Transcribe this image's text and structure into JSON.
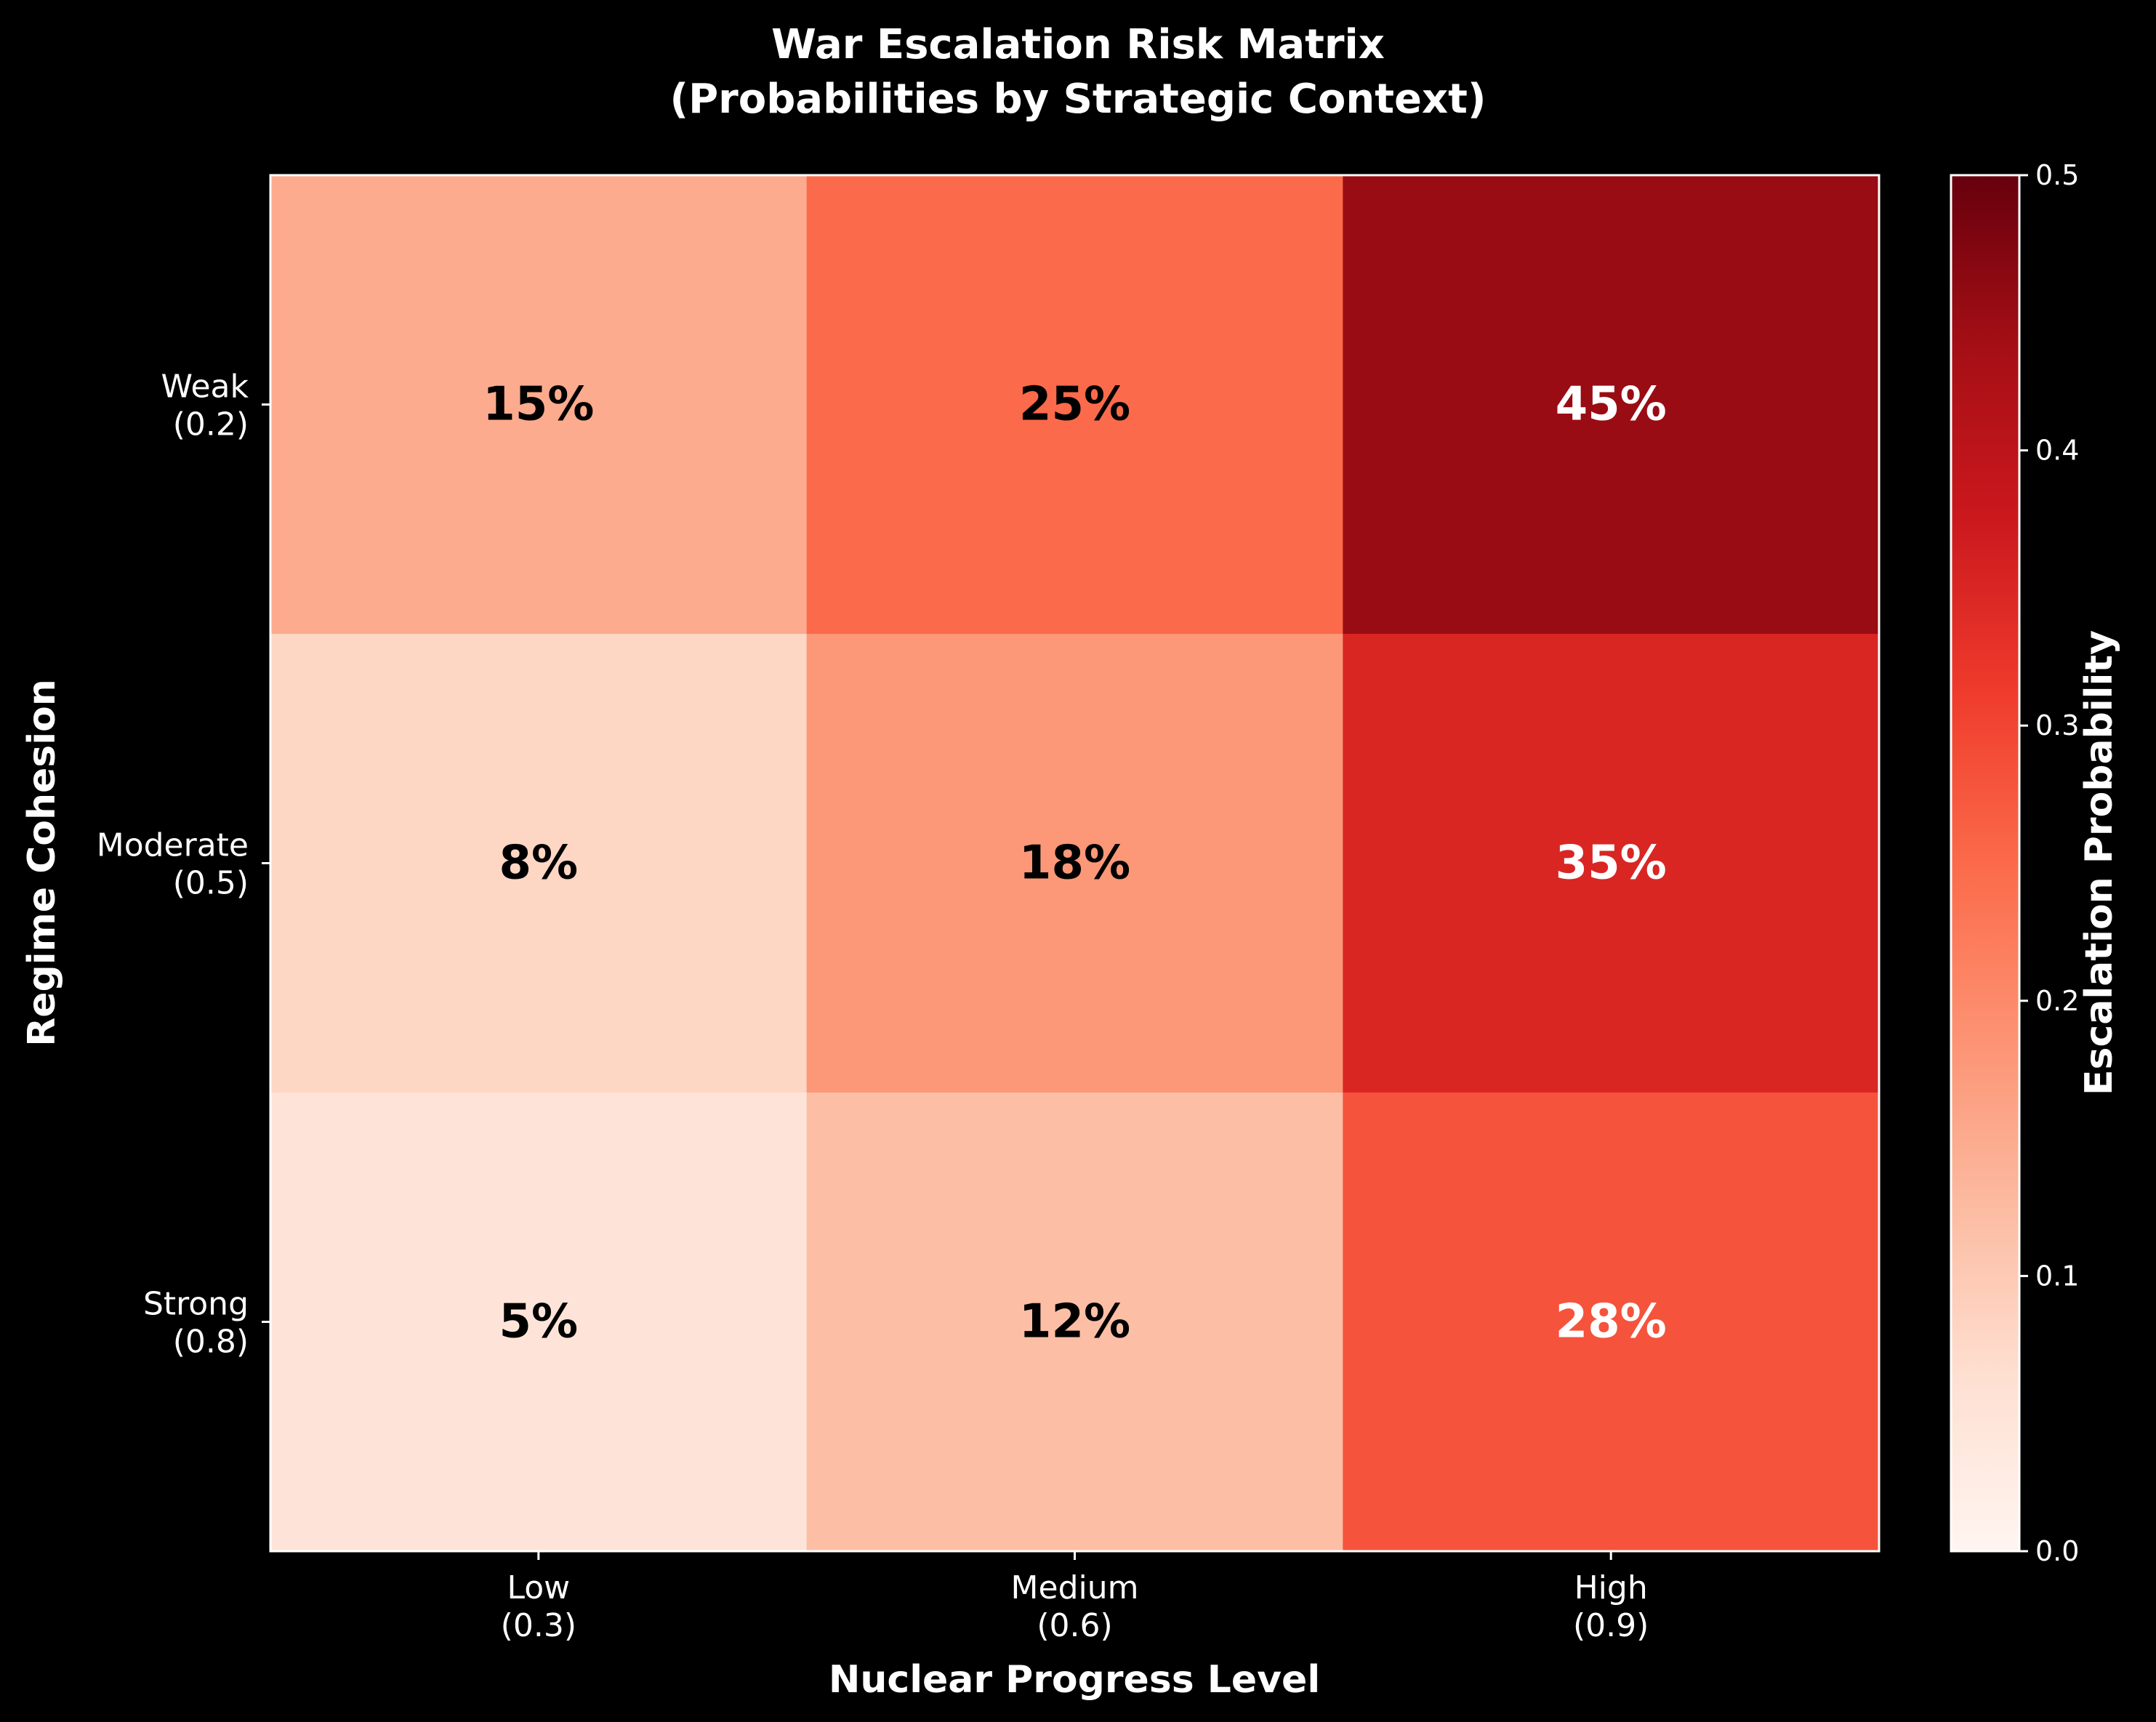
{
  "chart_data": {
    "type": "heatmap",
    "title": [
      "War Escalation Risk Matrix",
      "(Probabilities by Strategic Context)"
    ],
    "xlabel": "Nuclear Progress Level",
    "ylabel": "Regime Cohesion",
    "x_categories": [
      [
        "Low",
        "(0.3)"
      ],
      [
        "Medium",
        "(0.6)"
      ],
      [
        "High",
        "(0.9)"
      ]
    ],
    "y_categories": [
      [
        "Weak",
        "(0.2)"
      ],
      [
        "Moderate",
        "(0.5)"
      ],
      [
        "Strong",
        "(0.8)"
      ]
    ],
    "values": [
      [
        0.15,
        0.25,
        0.45
      ],
      [
        0.08,
        0.18,
        0.35
      ],
      [
        0.05,
        0.12,
        0.28
      ]
    ],
    "cell_labels": [
      [
        "15%",
        "25%",
        "45%"
      ],
      [
        "8%",
        "18%",
        "35%"
      ],
      [
        "5%",
        "12%",
        "28%"
      ]
    ],
    "colorbar": {
      "label": "Escalation Probability",
      "range": [
        0,
        0.5
      ],
      "ticks": [
        "0.0",
        "0.1",
        "0.2",
        "0.3",
        "0.4",
        "0.5"
      ],
      "colormap": "Reds"
    },
    "grid": false,
    "background": "#000000"
  }
}
